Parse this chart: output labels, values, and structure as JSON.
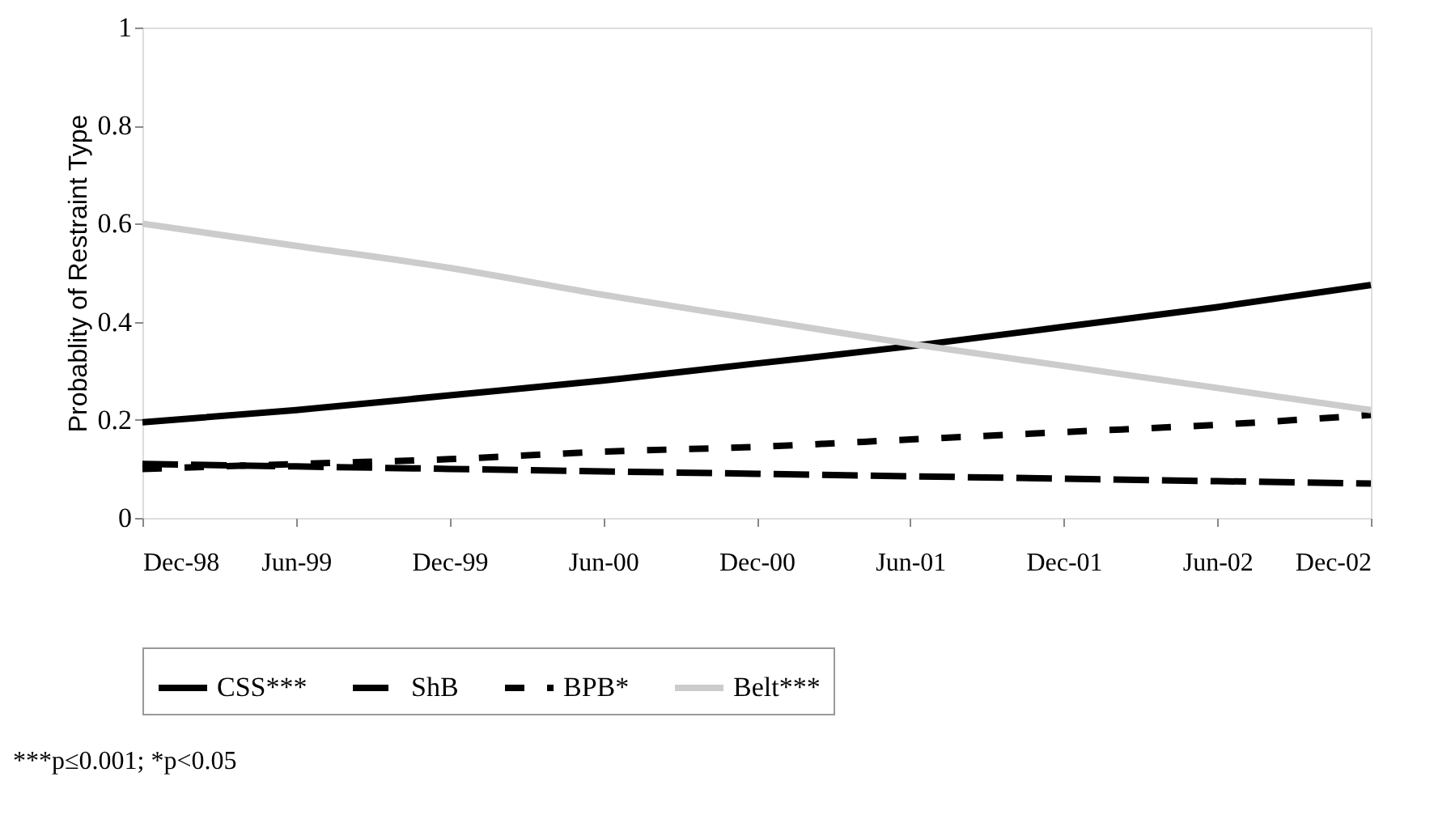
{
  "chart_data": {
    "type": "line",
    "ylabel": "Probablity of Restraint Type",
    "categories": [
      "Dec-98",
      "Jun-99",
      "Dec-99",
      "Jun-00",
      "Dec-00",
      "Jun-01",
      "Dec-01",
      "Jun-02",
      "Dec-02"
    ],
    "series": [
      {
        "name": "CSS***",
        "color": "#000000",
        "line_style": "solid",
        "values": [
          0.195,
          0.22,
          0.25,
          0.28,
          0.315,
          0.35,
          0.39,
          0.43,
          0.475
        ]
      },
      {
        "name": "ShB",
        "color": "#000000",
        "line_style": "dashed",
        "values": [
          0.11,
          0.105,
          0.1,
          0.095,
          0.09,
          0.085,
          0.08,
          0.075,
          0.07
        ]
      },
      {
        "name": "BPB*",
        "color": "#000000",
        "line_style": "dashed",
        "values": [
          0.1,
          0.11,
          0.12,
          0.135,
          0.145,
          0.16,
          0.175,
          0.19,
          0.21
        ]
      },
      {
        "name": "Belt***",
        "color": "#cccccc",
        "line_style": "solid",
        "values": [
          0.6,
          0.555,
          0.51,
          0.455,
          0.405,
          0.355,
          0.31,
          0.265,
          0.22
        ]
      }
    ],
    "ylim": [
      0,
      1
    ],
    "yticks": [
      0,
      0.2,
      0.4,
      0.6,
      0.8,
      1
    ],
    "grid": false,
    "legend": "bottom",
    "marker": "none",
    "annotations": [
      "***p≤0.001; *p<0.05"
    ]
  }
}
